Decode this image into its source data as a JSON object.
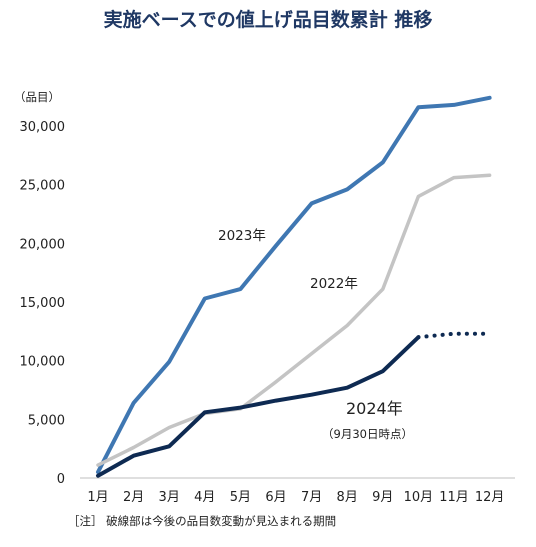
{
  "chart_data": {
    "type": "line",
    "title": "実施ベースでの値上げ品目数累計 推移",
    "unit_label": "（品目）",
    "categories": [
      "1月",
      "2月",
      "3月",
      "4月",
      "5月",
      "6月",
      "7月",
      "8月",
      "9月",
      "10月",
      "11月",
      "12月"
    ],
    "ylim": [
      0,
      30000
    ],
    "yticks": [
      "0",
      "5,000",
      "10,000",
      "15,000",
      "20,000",
      "25,000",
      "30,000"
    ],
    "ytick_values": [
      0,
      5000,
      10000,
      15000,
      20000,
      25000,
      30000
    ],
    "grid": false,
    "series": [
      {
        "name": "2023年",
        "color": "#3f77b2",
        "values": [
          500,
          6400,
          9900,
          15300,
          16100,
          19800,
          23400,
          24600,
          26900,
          31600,
          31800,
          32400
        ]
      },
      {
        "name": "2022年",
        "color": "#c4c4c4",
        "values": [
          1100,
          2600,
          4300,
          5500,
          5900,
          8200,
          10600,
          13000,
          16100,
          24000,
          25600,
          25800
        ]
      },
      {
        "name": "2024年",
        "sublabel": "（9月30日時点）",
        "color": "#0e2a52",
        "values": [
          200,
          1900,
          2700,
          5600,
          6000,
          6600,
          7100,
          7700,
          9100,
          12000,
          12300,
          12300
        ],
        "dashed_from_index": 9
      }
    ],
    "note": "［注］ 破線部は今後の品目数変動が見込まれる期間"
  }
}
